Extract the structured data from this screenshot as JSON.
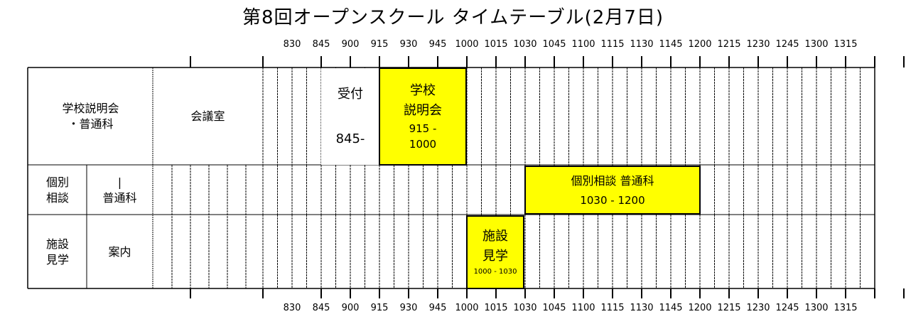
{
  "title": "第8回オープンスクール タイムテーブル(2月7日)",
  "time_ticks": [
    "830",
    "845",
    "900",
    "915",
    "930",
    "945",
    "1000",
    "1015",
    "1030",
    "1045",
    "1100",
    "1115",
    "1130",
    "1145",
    "1200",
    "1215",
    "1230",
    "1245",
    "1300",
    "1315"
  ],
  "rows": [
    {
      "label_lines": [
        "学校説明会",
        "・普通科"
      ],
      "location": "会議室"
    },
    {
      "label_lines": [
        "個別",
        "相談"
      ],
      "location_lines": [
        "|",
        "普通科"
      ]
    },
    {
      "label_lines": [
        "施設",
        "見学"
      ],
      "location": "案内"
    }
  ],
  "blocks": {
    "reception": {
      "title": "受付",
      "time": "845-"
    },
    "briefing": {
      "line1": "学校",
      "line2": "説明会",
      "time1": "915 -",
      "time2": "1000"
    },
    "consult": {
      "title": "個別相談 普通科",
      "time": "1030 - 1200"
    },
    "tour": {
      "line1": "施設",
      "line2": "見学",
      "time": "1000 - 1030"
    }
  },
  "colors": {
    "highlight": "#ffff00",
    "line": "#000000"
  }
}
